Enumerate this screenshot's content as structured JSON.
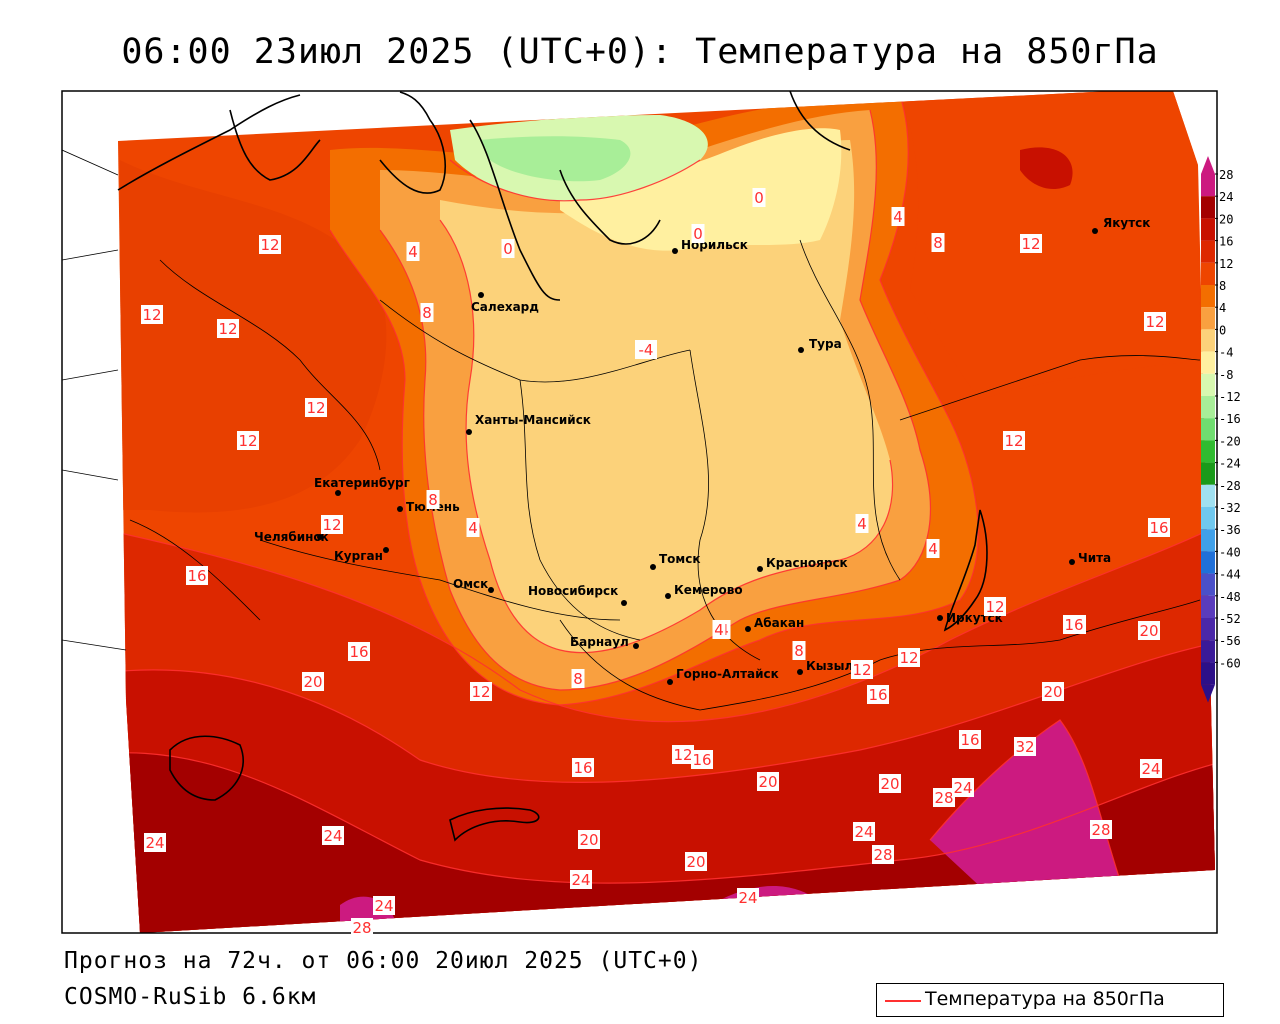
{
  "title": "06:00 23июл 2025 (UTC+0): Температура на 850гПа",
  "forecast_line": "Прогноз на 72ч. от 06:00 20июл 2025 (UTC+0)",
  "model_line": "COSMO-RuSib 6.6км",
  "legend": {
    "label": "Температура на 850гПа",
    "line_color": "#ff3030"
  },
  "colorbar": {
    "labels": [
      "28",
      "24",
      "20",
      "16",
      "12",
      "8",
      "4",
      "0",
      "-4",
      "-8",
      "-12",
      "-16",
      "-20",
      "-24",
      "-28",
      "-32",
      "-36",
      "-40",
      "-44",
      "-48",
      "-52",
      "-56",
      "-60"
    ],
    "colors": [
      "#cc1a80",
      "#a30000",
      "#c81000",
      "#dd2800",
      "#ee4500",
      "#f36e00",
      "#f9a040",
      "#fcd27a",
      "#fff0a0",
      "#d8f8b0",
      "#a8ee98",
      "#70dd70",
      "#30bb30",
      "#1a9a1a",
      "#a0e0f0",
      "#70c8ee",
      "#40a0e8",
      "#2070d8",
      "#4a50c8",
      "#5a3cbc",
      "#4a28a8",
      "#3a1a98",
      "#2c1088"
    ]
  },
  "cities": [
    {
      "name": "Якутск"
    },
    {
      "name": "Норильск"
    },
    {
      "name": "Салехард"
    },
    {
      "name": "Тура"
    },
    {
      "name": "Ханты-Мансийск"
    },
    {
      "name": "Екатеринбург"
    },
    {
      "name": "Тюмень"
    },
    {
      "name": "Челябинск"
    },
    {
      "name": "Курган"
    },
    {
      "name": "Омск"
    },
    {
      "name": "Новосибирск"
    },
    {
      "name": "Томск"
    },
    {
      "name": "Кемерово"
    },
    {
      "name": "Красноярск"
    },
    {
      "name": "Абакан"
    },
    {
      "name": "Барнаул"
    },
    {
      "name": "Горно-Алтайск"
    },
    {
      "name": "Кызыл"
    },
    {
      "name": "Иркутск"
    },
    {
      "name": "Чита"
    }
  ],
  "isotherm_labels": [
    "12",
    "12",
    "12",
    "12",
    "12",
    "4",
    "8",
    "0",
    "0",
    "0",
    "-4",
    "4",
    "8",
    "12",
    "12",
    "4",
    "4",
    "8",
    "12",
    "4",
    "12",
    "16",
    "16",
    "20",
    "12",
    "8",
    "4",
    "8",
    "12",
    "12",
    "16",
    "12",
    "16",
    "20",
    "16",
    "16",
    "20",
    "20",
    "20",
    "24",
    "24",
    "28",
    "28",
    "24",
    "28",
    "32",
    "24",
    "24",
    "20",
    "24",
    "24",
    "28",
    "24",
    "20",
    "16",
    "4",
    "12",
    "16",
    "16",
    "20"
  ]
}
